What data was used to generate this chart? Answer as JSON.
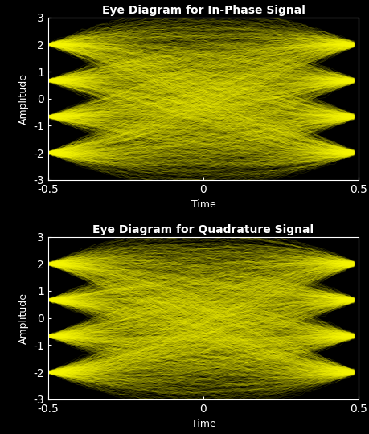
{
  "title1": "Eye Diagram for In-Phase Signal",
  "title2": "Eye Diagram for Quadrature Signal",
  "xlabel": "Time",
  "ylabel": "Amplitude",
  "xlim": [
    -0.5,
    0.5
  ],
  "ylim": [
    -3,
    3
  ],
  "xticks": [
    -0.5,
    0,
    0.5
  ],
  "yticks": [
    -3,
    -2,
    -1,
    0,
    1,
    2,
    3
  ],
  "line_color": "#ffff00",
  "bg_color": "#000000",
  "text_color": "#ffffff",
  "spine_color": "#ffffff",
  "tick_color": "#ffffff",
  "line_alpha": 0.12,
  "line_width": 0.5,
  "n_traces": 500,
  "sps": 64,
  "rolloff": 0.35,
  "noise_std": 0.03,
  "title_fontsize": 10,
  "label_fontsize": 9
}
